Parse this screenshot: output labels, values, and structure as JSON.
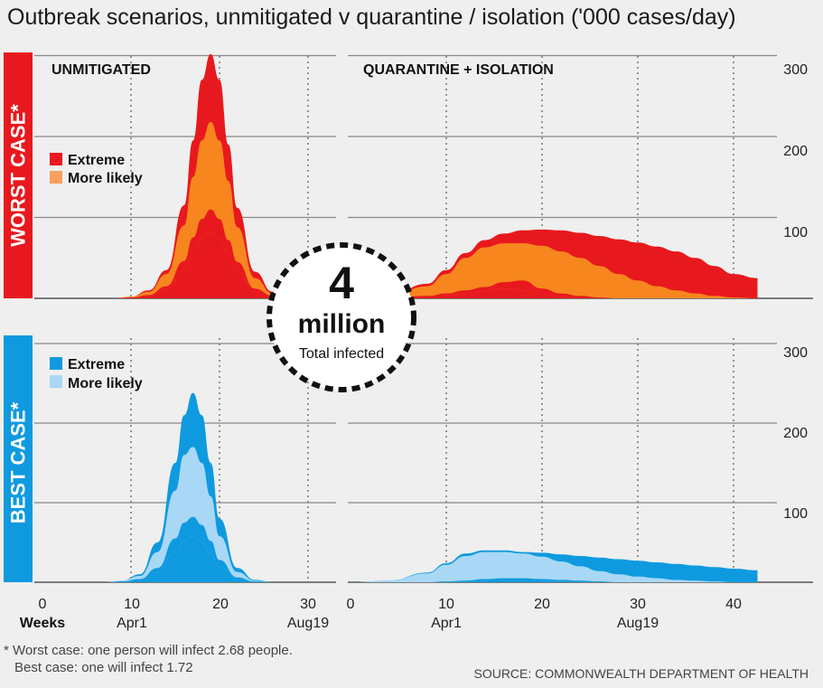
{
  "title": "Outbreak scenarios, unmitigated v quarantine / isolation ('000 cases/day)",
  "row_labels": {
    "worst": "WORST CASE*",
    "best": "BEST CASE*"
  },
  "panel_titles": {
    "unmitigated": "UNMITIGATED",
    "quarantine": "QUARANTINE + ISOLATION"
  },
  "legends": {
    "worst": [
      {
        "label": "Extreme",
        "color": "#e8191e"
      },
      {
        "label": "More likely",
        "color": "#f8a05c"
      }
    ],
    "best": [
      {
        "label": "Extreme",
        "color": "#0f9ae0"
      },
      {
        "label": "More likely",
        "color": "#a8d8f5"
      }
    ]
  },
  "badge": {
    "number": "4",
    "word": "million",
    "caption": "Total infected"
  },
  "x_axis": {
    "left_ticks": [
      "0",
      "10",
      "20",
      "30"
    ],
    "right_ticks": [
      "0",
      "10",
      "20",
      "30",
      "40"
    ],
    "weeks_label": "Weeks",
    "date_labels_left": [
      "Apr1",
      "Aug19"
    ],
    "date_labels_right": [
      "Apr1",
      "Aug19"
    ]
  },
  "y_ticks": [
    "100",
    "200",
    "300"
  ],
  "footnote": {
    "line1": "* Worst case: one person will infect 2.68 people.",
    "line2": "Best case: one will infect 1.72"
  },
  "source": "SOURCE: COMMONWEALTH DEPARTMENT OF HEALTH",
  "colors": {
    "worst_extreme_band": "#e8191e",
    "worst_likely_band": "#f7861e",
    "best_extreme_band": "#0f9ae0",
    "best_likely_band": "#a8d8f5",
    "worst_row_bar": "#e8191e",
    "best_row_bar": "#0f9ae0"
  },
  "chart_data": [
    {
      "panel": "worst-unmitigated",
      "type": "area",
      "xlabel": "Weeks",
      "ylim": [
        0,
        300
      ],
      "x": [
        0,
        8,
        10,
        12,
        14,
        16,
        17,
        18,
        19,
        20,
        21,
        22,
        24,
        26,
        28
      ],
      "series": [
        {
          "name": "Extreme",
          "band": "upper",
          "values": [
            0,
            0,
            2,
            10,
            35,
            115,
            195,
            270,
            302,
            270,
            190,
            112,
            33,
            8,
            0
          ]
        },
        {
          "band": "inner_top",
          "values": [
            0,
            0,
            2,
            8,
            30,
            90,
            150,
            195,
            218,
            195,
            145,
            88,
            25,
            6,
            0
          ]
        },
        {
          "band": "inner_mid",
          "values": [
            0,
            0,
            1,
            4,
            15,
            46,
            75,
            98,
            110,
            98,
            72,
            45,
            12,
            3,
            0
          ]
        },
        {
          "name": "More likely",
          "band": "lower",
          "values": [
            0,
            0,
            1,
            3,
            11,
            34,
            56,
            74,
            82,
            74,
            54,
            33,
            9,
            2,
            0
          ]
        }
      ]
    },
    {
      "panel": "worst-quarantine",
      "type": "area",
      "xlabel": "Weeks",
      "ylim": [
        0,
        300
      ],
      "x": [
        0,
        4,
        8,
        10,
        12,
        14,
        16,
        18,
        20,
        22,
        24,
        26,
        28,
        30,
        32,
        34,
        36,
        38,
        40,
        42.5
      ],
      "series": [
        {
          "name": "Extreme",
          "band": "upper",
          "values": [
            0,
            3,
            18,
            35,
            56,
            72,
            80,
            84,
            85,
            84,
            81,
            77,
            73,
            69,
            64,
            58,
            50,
            40,
            30,
            25
          ]
        },
        {
          "band": "inner_top",
          "values": [
            0,
            2,
            15,
            30,
            50,
            63,
            68,
            68,
            65,
            58,
            50,
            40,
            30,
            22,
            15,
            10,
            6,
            3,
            1,
            0
          ]
        },
        {
          "band": "inner_mid",
          "values": [
            0,
            0,
            3,
            6,
            10,
            14,
            20,
            22,
            12,
            6,
            3,
            1,
            0,
            0,
            0,
            0,
            0,
            0,
            0,
            0
          ]
        },
        {
          "name": "More likely",
          "band": "lower",
          "values": [
            0,
            0,
            2,
            4,
            6,
            9,
            12,
            10,
            5,
            2,
            1,
            0,
            0,
            0,
            0,
            0,
            0,
            0,
            0,
            0
          ]
        }
      ]
    },
    {
      "panel": "best-unmitigated",
      "type": "area",
      "xlabel": "Weeks",
      "ylim": [
        0,
        300
      ],
      "x": [
        0,
        7,
        9,
        11,
        13,
        15,
        16,
        17,
        18,
        19,
        20,
        22,
        24,
        26
      ],
      "series": [
        {
          "name": "Extreme",
          "band": "upper",
          "values": [
            0,
            0,
            2,
            10,
            50,
            150,
            210,
            238,
            210,
            150,
            80,
            18,
            3,
            0
          ]
        },
        {
          "band": "inner_top",
          "values": [
            0,
            0,
            2,
            8,
            38,
            115,
            160,
            170,
            150,
            108,
            58,
            13,
            2,
            0
          ]
        },
        {
          "band": "inner_mid",
          "values": [
            0,
            0,
            1,
            4,
            18,
            55,
            75,
            82,
            72,
            52,
            28,
            6,
            1,
            0
          ]
        },
        {
          "name": "More likely",
          "band": "lower",
          "values": [
            0,
            0,
            1,
            3,
            12,
            38,
            52,
            58,
            50,
            36,
            19,
            4,
            1,
            0
          ]
        }
      ]
    },
    {
      "panel": "best-quarantine",
      "type": "area",
      "xlabel": "Weeks",
      "ylim": [
        0,
        300
      ],
      "x": [
        0,
        4,
        8,
        10,
        12,
        14,
        16,
        18,
        20,
        22,
        24,
        26,
        28,
        30,
        32,
        34,
        36,
        38,
        40,
        42.5
      ],
      "series": [
        {
          "name": "Extreme",
          "band": "upper",
          "values": [
            0,
            2,
            12,
            24,
            36,
            40,
            40,
            38,
            37,
            35,
            33,
            31,
            29,
            27,
            25,
            23,
            21,
            19,
            17,
            15
          ]
        },
        {
          "band": "inner_top",
          "values": [
            0,
            2,
            11,
            22,
            33,
            38,
            38,
            36,
            32,
            26,
            20,
            14,
            10,
            7,
            5,
            3,
            2,
            1,
            0,
            0
          ]
        },
        {
          "band": "inner_mid",
          "values": [
            0,
            0,
            0,
            1,
            2,
            4,
            5,
            5,
            4,
            3,
            2,
            1,
            0,
            0,
            0,
            0,
            0,
            0,
            0,
            0
          ]
        },
        {
          "name": "More likely",
          "band": "lower",
          "values": [
            0,
            0,
            0,
            0,
            1,
            2,
            3,
            3,
            2,
            2,
            1,
            0,
            0,
            0,
            0,
            0,
            0,
            0,
            0,
            0
          ]
        }
      ]
    }
  ]
}
